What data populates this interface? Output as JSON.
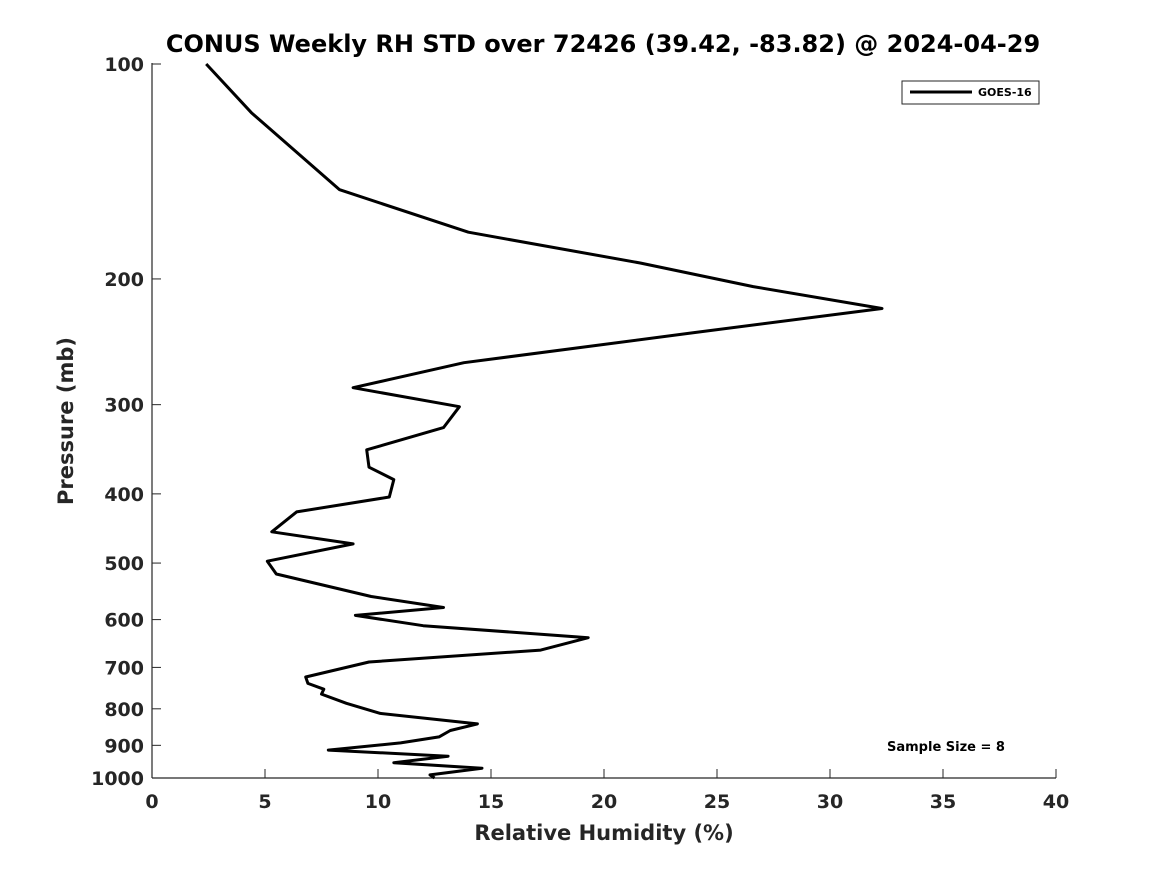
{
  "chart_data": {
    "type": "line",
    "title": "CONUS Weekly RH STD over 72426 (39.42, -83.82) @ 2024-04-29",
    "xlabel": "Relative Humidity (%)",
    "ylabel": "Pressure (mb)",
    "xlim": [
      0,
      40
    ],
    "ylim": [
      100,
      1000
    ],
    "y_scale": "log",
    "y_reversed": true,
    "grid": false,
    "legend_position": "top-right",
    "x_ticks": [
      0,
      5,
      10,
      15,
      20,
      25,
      30,
      35,
      40
    ],
    "y_ticks": [
      100,
      200,
      300,
      400,
      500,
      600,
      700,
      800,
      900,
      1000
    ],
    "series": [
      {
        "name": "GOES-16",
        "color": "#000000",
        "x": [
          2.4,
          4.4,
          8.3,
          14.0,
          21.6,
          26.6,
          32.3,
          23.9,
          13.8,
          8.9,
          13.6,
          12.9,
          9.5,
          9.6,
          10.7,
          10.5,
          6.4,
          5.3,
          8.9,
          5.1,
          5.5,
          9.7,
          12.9,
          9.0,
          12.0,
          19.3,
          17.2,
          9.6,
          6.8,
          6.9,
          7.6,
          7.5,
          8.6,
          10.1,
          14.4,
          13.2,
          12.7,
          11.0,
          7.8,
          13.1,
          10.7,
          14.6,
          12.3,
          12.5
        ],
        "y": [
          100,
          117,
          150,
          172,
          190,
          205,
          220,
          238,
          262,
          284,
          302,
          323,
          347,
          367,
          382,
          404,
          424,
          452,
          470,
          497,
          518,
          557,
          577,
          592,
          612,
          636,
          662,
          688,
          722,
          737,
          751,
          763,
          786,
          812,
          840,
          858,
          876,
          893,
          914,
          932,
          952,
          969,
          990,
          1000
        ]
      }
    ],
    "annotations": [
      "Sample Size = 8"
    ]
  }
}
